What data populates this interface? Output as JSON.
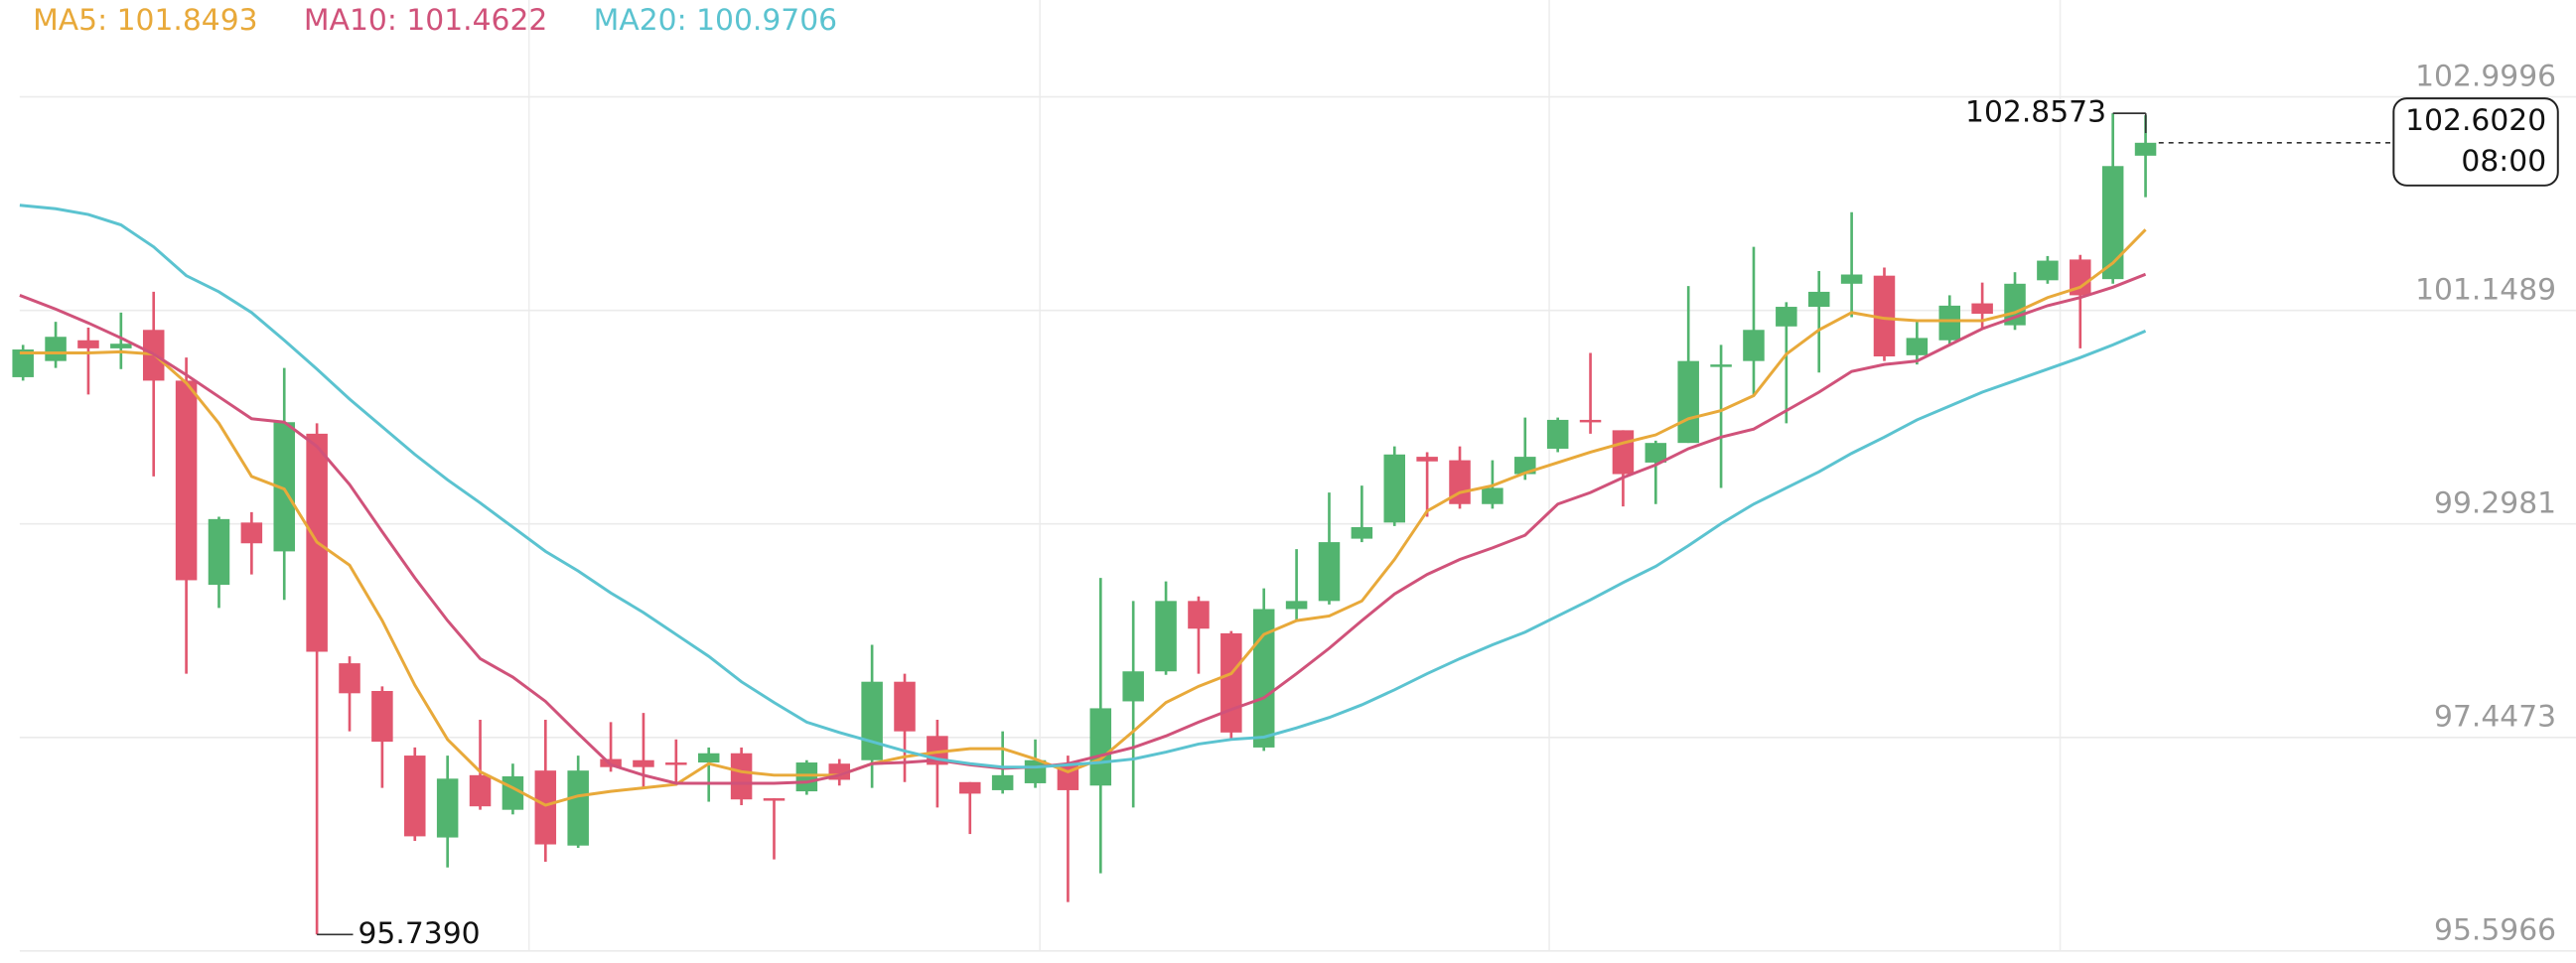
{
  "chart_data": {
    "type": "candlestick",
    "ylim": [
      95.5966,
      102.9996
    ],
    "yticks": [
      95.5966,
      97.4473,
      99.2981,
      101.1489,
      102.9996
    ],
    "grid": true,
    "up_color": "#52b46f",
    "down_color": "#e1566e",
    "open": [
      100.57,
      100.71,
      100.89,
      100.82,
      100.98,
      100.54,
      98.77,
      99.31,
      99.06,
      100.08,
      98.09,
      97.85,
      97.29,
      96.58,
      97.12,
      96.82,
      97.16,
      96.51,
      97.26,
      97.25,
      97.23,
      97.23,
      97.31,
      96.92,
      96.98,
      97.22,
      97.25,
      97.93,
      97.46,
      97.06,
      96.99,
      97.05,
      97.21,
      97.03,
      97.76,
      98.02,
      98.63,
      98.35,
      97.36,
      98.56,
      98.63,
      99.17,
      99.31,
      99.88,
      99.85,
      99.47,
      99.73,
      99.95,
      100.2,
      100.11,
      99.83,
      100.0,
      100.67,
      100.71,
      101.01,
      101.18,
      101.38,
      101.45,
      100.76,
      100.89,
      101.21,
      101.02,
      101.41,
      101.59,
      101.42,
      102.49
    ],
    "high": [
      100.85,
      101.05,
      101.0,
      101.13,
      101.31,
      100.74,
      99.36,
      99.4,
      100.65,
      100.17,
      98.15,
      97.89,
      97.36,
      97.29,
      97.6,
      97.22,
      97.6,
      97.29,
      97.58,
      97.66,
      97.43,
      97.36,
      97.36,
      96.92,
      97.25,
      97.26,
      98.25,
      98.0,
      97.6,
      97.06,
      97.5,
      97.43,
      97.29,
      98.83,
      98.63,
      98.8,
      98.67,
      98.37,
      98.74,
      99.08,
      99.57,
      99.63,
      99.97,
      99.92,
      99.97,
      99.85,
      100.22,
      100.22,
      100.78,
      100.11,
      100.02,
      101.36,
      100.85,
      101.7,
      101.22,
      101.49,
      102.0,
      101.52,
      101.05,
      101.28,
      101.39,
      101.48,
      101.62,
      101.63,
      102.8573,
      102.84
    ],
    "low": [
      100.54,
      100.65,
      100.42,
      100.64,
      99.71,
      98.0,
      98.57,
      98.86,
      98.64,
      95.739,
      97.5,
      97.01,
      96.55,
      96.32,
      96.82,
      96.78,
      96.37,
      96.49,
      97.15,
      97.01,
      97.03,
      96.89,
      96.86,
      96.39,
      96.95,
      97.03,
      97.01,
      97.06,
      96.84,
      96.61,
      96.96,
      97.01,
      96.02,
      96.27,
      96.84,
      97.99,
      98.0,
      97.43,
      97.33,
      98.46,
      98.6,
      99.14,
      99.28,
      99.36,
      99.43,
      99.43,
      99.68,
      99.92,
      100.08,
      99.45,
      99.47,
      100.0,
      99.61,
      100.42,
      100.17,
      100.61,
      101.09,
      100.71,
      100.68,
      100.85,
      100.99,
      100.98,
      101.38,
      100.82,
      101.38,
      102.13
    ],
    "close": [
      100.81,
      100.92,
      100.82,
      100.86,
      100.54,
      98.81,
      99.34,
      99.13,
      100.18,
      98.19,
      97.83,
      97.41,
      96.59,
      97.09,
      96.85,
      97.11,
      96.52,
      97.16,
      97.19,
      97.19,
      97.21,
      97.31,
      96.91,
      96.91,
      97.23,
      97.08,
      97.93,
      97.5,
      97.21,
      96.96,
      97.12,
      97.25,
      96.99,
      97.7,
      98.02,
      98.63,
      98.39,
      97.49,
      98.56,
      98.63,
      99.14,
      99.27,
      99.9,
      99.84,
      99.47,
      99.61,
      99.88,
      100.2,
      100.18,
      99.73,
      100.0,
      100.71,
      100.68,
      100.98,
      101.18,
      101.31,
      101.46,
      100.75,
      100.91,
      101.19,
      101.12,
      101.38,
      101.58,
      101.28,
      102.4,
      102.602
    ],
    "series": [
      {
        "name": "MA5: 101.8493",
        "color": "#e8a93a",
        "values": [
          100.78,
          100.78,
          100.78,
          100.79,
          100.77,
          100.52,
          100.17,
          99.71,
          99.6,
          99.14,
          98.94,
          98.46,
          97.9,
          97.43,
          97.15,
          97.01,
          96.86,
          96.94,
          96.98,
          97.01,
          97.04,
          97.22,
          97.15,
          97.12,
          97.12,
          97.12,
          97.22,
          97.28,
          97.32,
          97.35,
          97.35,
          97.26,
          97.15,
          97.26,
          97.5,
          97.75,
          97.89,
          98.0,
          98.34,
          98.46,
          98.5,
          98.63,
          98.99,
          99.41,
          99.57,
          99.63,
          99.74,
          99.83,
          99.92,
          100.0,
          100.07,
          100.21,
          100.28,
          100.41,
          100.77,
          100.98,
          101.13,
          101.08,
          101.06,
          101.06,
          101.06,
          101.13,
          101.26,
          101.35,
          101.56,
          101.8493
        ]
      },
      {
        "name": "MA10: 101.4622",
        "color": "#d0527a",
        "values": [
          101.28,
          101.16,
          101.04,
          100.91,
          100.77,
          100.59,
          100.4,
          100.21,
          100.18,
          99.97,
          99.64,
          99.23,
          98.83,
          98.46,
          98.13,
          97.97,
          97.76,
          97.48,
          97.21,
          97.12,
          97.05,
          97.05,
          97.05,
          97.05,
          97.06,
          97.12,
          97.22,
          97.23,
          97.25,
          97.21,
          97.18,
          97.19,
          97.22,
          97.29,
          97.36,
          97.46,
          97.58,
          97.69,
          97.79,
          98.0,
          98.22,
          98.46,
          98.69,
          98.86,
          98.99,
          99.09,
          99.2,
          99.47,
          99.57,
          99.7,
          99.81,
          99.95,
          100.05,
          100.12,
          100.28,
          100.44,
          100.62,
          100.68,
          100.71,
          100.85,
          100.99,
          101.09,
          101.19,
          101.26,
          101.35,
          101.4622
        ]
      },
      {
        "name": "MA20: 100.9706",
        "color": "#5bc3d0",
        "values": [
          102.06,
          102.03,
          101.98,
          101.89,
          101.7,
          101.45,
          101.31,
          101.13,
          100.89,
          100.64,
          100.38,
          100.14,
          99.9,
          99.68,
          99.48,
          99.27,
          99.06,
          98.89,
          98.7,
          98.53,
          98.34,
          98.15,
          97.93,
          97.75,
          97.58,
          97.49,
          97.41,
          97.33,
          97.26,
          97.22,
          97.19,
          97.19,
          97.21,
          97.23,
          97.26,
          97.32,
          97.39,
          97.43,
          97.45,
          97.53,
          97.62,
          97.73,
          97.86,
          98.0,
          98.13,
          98.25,
          98.36,
          98.5,
          98.64,
          98.79,
          98.93,
          99.11,
          99.3,
          99.47,
          99.61,
          99.75,
          99.91,
          100.05,
          100.2,
          100.32,
          100.44,
          100.54,
          100.64,
          100.74,
          100.85,
          100.9706
        ]
      }
    ],
    "annotations": [
      {
        "value": 102.8573,
        "label": "102.8573"
      },
      {
        "value": 95.739,
        "label": "95.7390"
      }
    ],
    "last_price": {
      "value": 102.602,
      "label": "102.6020"
    },
    "last_time": "08:00"
  }
}
